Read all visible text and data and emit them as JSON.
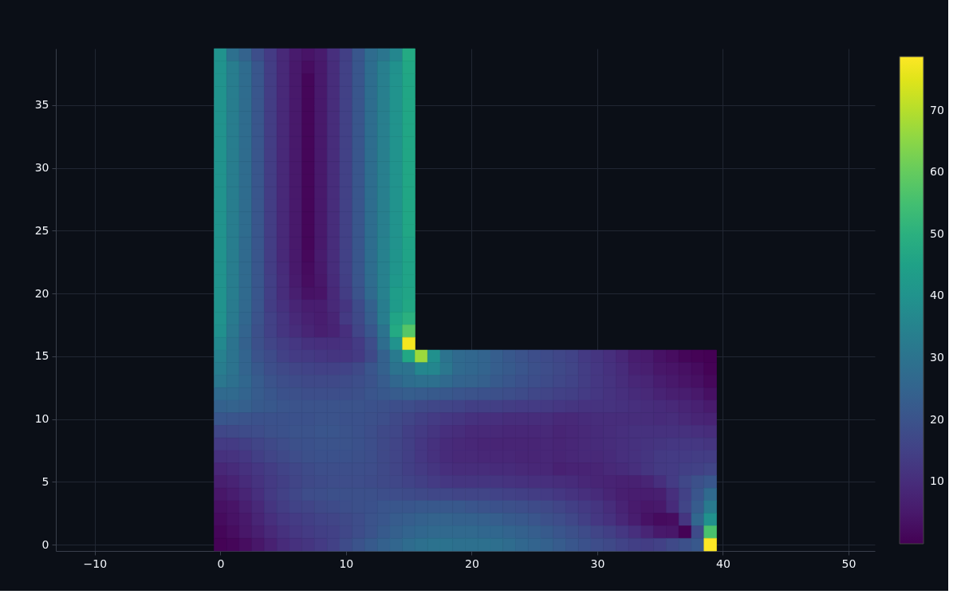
{
  "chart_data": {
    "type": "heatmap",
    "x": [
      0,
      1,
      2,
      3,
      4,
      5,
      6,
      7,
      8,
      9,
      10,
      11,
      12,
      13,
      14,
      15,
      16,
      17,
      18,
      19,
      20,
      21,
      22,
      23,
      24,
      25,
      26,
      27,
      28,
      29,
      30,
      31,
      32,
      33,
      34,
      35,
      36,
      37,
      38,
      39
    ],
    "y": [
      39,
      38,
      37,
      36,
      35,
      34,
      33,
      32,
      31,
      30,
      29,
      28,
      27,
      26,
      25,
      24,
      23,
      22,
      21,
      20,
      19,
      18,
      17,
      16,
      15,
      14,
      13,
      12,
      11,
      10,
      9,
      8,
      7,
      6,
      5,
      4,
      3,
      2,
      1,
      0
    ],
    "xlim": [
      -13.1,
      52.1
    ],
    "ylim": [
      -0.5,
      39.5
    ],
    "xticks": [
      -10,
      0,
      10,
      20,
      30,
      40,
      50
    ],
    "yticks": [
      0,
      5,
      10,
      15,
      20,
      25,
      30,
      35
    ],
    "clim": [
      0,
      78.7
    ],
    "cticks": [
      10,
      20,
      30,
      40,
      50,
      60,
      70
    ],
    "grid": true,
    "cells": [
      [
        40,
        29,
        24.5,
        18.5,
        13.5,
        9,
        5.5,
        4,
        5.5,
        10.5,
        14.5,
        21,
        27.5,
        30.5,
        36,
        48,
        null,
        null,
        null,
        null,
        null,
        null,
        null,
        null,
        null,
        null,
        null,
        null,
        null,
        null,
        null,
        null,
        null,
        null,
        null,
        null,
        null,
        null,
        null,
        null
      ],
      [
        40,
        33,
        27.5,
        21,
        14,
        9,
        5,
        2.5,
        5,
        10,
        15,
        21,
        28,
        33.5,
        39.5,
        47,
        null,
        null,
        null,
        null,
        null,
        null,
        null,
        null,
        null,
        null,
        null,
        null,
        null,
        null,
        null,
        null,
        null,
        null,
        null,
        null,
        null,
        null,
        null,
        null
      ],
      [
        40,
        33,
        27.5,
        21,
        14,
        9,
        5,
        1,
        5,
        10,
        15,
        21,
        28,
        33.5,
        40,
        46.5,
        null,
        null,
        null,
        null,
        null,
        null,
        null,
        null,
        null,
        null,
        null,
        null,
        null,
        null,
        null,
        null,
        null,
        null,
        null,
        null,
        null,
        null,
        null,
        null
      ],
      [
        40,
        33,
        27.5,
        21,
        14,
        9,
        5,
        1,
        5,
        10,
        15,
        21,
        28,
        33.5,
        40,
        46.5,
        null,
        null,
        null,
        null,
        null,
        null,
        null,
        null,
        null,
        null,
        null,
        null,
        null,
        null,
        null,
        null,
        null,
        null,
        null,
        null,
        null,
        null,
        null,
        null
      ],
      [
        40,
        33,
        27.5,
        21,
        14,
        9,
        5,
        1,
        5,
        10,
        15,
        21,
        28,
        33.5,
        40,
        46.5,
        null,
        null,
        null,
        null,
        null,
        null,
        null,
        null,
        null,
        null,
        null,
        null,
        null,
        null,
        null,
        null,
        null,
        null,
        null,
        null,
        null,
        null,
        null,
        null
      ],
      [
        40,
        33,
        27.5,
        21,
        14,
        9,
        5,
        1,
        5,
        10,
        15,
        21,
        28,
        33.5,
        40,
        46.5,
        null,
        null,
        null,
        null,
        null,
        null,
        null,
        null,
        null,
        null,
        null,
        null,
        null,
        null,
        null,
        null,
        null,
        null,
        null,
        null,
        null,
        null,
        null,
        null
      ],
      [
        40,
        33,
        27.5,
        21,
        14,
        9,
        5,
        1,
        5,
        10,
        15,
        21,
        28,
        33.5,
        40,
        46.5,
        null,
        null,
        null,
        null,
        null,
        null,
        null,
        null,
        null,
        null,
        null,
        null,
        null,
        null,
        null,
        null,
        null,
        null,
        null,
        null,
        null,
        null,
        null,
        null
      ],
      [
        40,
        33,
        27.5,
        21,
        14,
        9,
        5,
        1,
        5,
        10,
        15,
        21,
        28,
        33.5,
        40,
        46.5,
        null,
        null,
        null,
        null,
        null,
        null,
        null,
        null,
        null,
        null,
        null,
        null,
        null,
        null,
        null,
        null,
        null,
        null,
        null,
        null,
        null,
        null,
        null,
        null
      ],
      [
        40,
        33,
        27.5,
        21,
        14,
        9,
        5,
        1,
        5,
        10,
        15,
        21,
        28,
        33.5,
        40,
        46.5,
        null,
        null,
        null,
        null,
        null,
        null,
        null,
        null,
        null,
        null,
        null,
        null,
        null,
        null,
        null,
        null,
        null,
        null,
        null,
        null,
        null,
        null,
        null,
        null
      ],
      [
        40,
        33,
        27.5,
        21,
        14,
        9,
        5,
        1,
        5,
        10,
        15,
        21,
        28,
        33.5,
        40,
        46.5,
        null,
        null,
        null,
        null,
        null,
        null,
        null,
        null,
        null,
        null,
        null,
        null,
        null,
        null,
        null,
        null,
        null,
        null,
        null,
        null,
        null,
        null,
        null,
        null
      ],
      [
        40,
        33,
        27.5,
        21,
        14,
        9,
        5,
        1,
        5,
        10,
        15,
        21,
        28,
        33.5,
        40,
        46.5,
        null,
        null,
        null,
        null,
        null,
        null,
        null,
        null,
        null,
        null,
        null,
        null,
        null,
        null,
        null,
        null,
        null,
        null,
        null,
        null,
        null,
        null,
        null,
        null
      ],
      [
        40,
        33,
        27.5,
        21,
        14,
        9,
        5,
        1,
        5,
        10,
        15,
        21,
        28,
        33.5,
        40,
        46.5,
        null,
        null,
        null,
        null,
        null,
        null,
        null,
        null,
        null,
        null,
        null,
        null,
        null,
        null,
        null,
        null,
        null,
        null,
        null,
        null,
        null,
        null,
        null,
        null
      ],
      [
        40,
        33,
        27.5,
        21,
        14,
        9,
        5,
        1,
        5,
        10,
        15,
        21,
        28,
        33.5,
        40,
        46.5,
        null,
        null,
        null,
        null,
        null,
        null,
        null,
        null,
        null,
        null,
        null,
        null,
        null,
        null,
        null,
        null,
        null,
        null,
        null,
        null,
        null,
        null,
        null,
        null
      ],
      [
        40,
        33,
        27.5,
        21,
        14,
        9,
        5,
        1,
        5,
        10,
        15,
        21,
        28,
        33.5,
        40,
        46.5,
        null,
        null,
        null,
        null,
        null,
        null,
        null,
        null,
        null,
        null,
        null,
        null,
        null,
        null,
        null,
        null,
        null,
        null,
        null,
        null,
        null,
        null,
        null,
        null
      ],
      [
        40,
        33,
        27.5,
        21,
        14,
        9,
        5,
        1,
        5,
        10,
        15,
        21,
        28,
        33.5,
        40,
        46.5,
        null,
        null,
        null,
        null,
        null,
        null,
        null,
        null,
        null,
        null,
        null,
        null,
        null,
        null,
        null,
        null,
        null,
        null,
        null,
        null,
        null,
        null,
        null,
        null
      ],
      [
        40,
        33,
        27,
        21,
        14,
        9,
        5,
        1,
        5,
        10,
        15,
        21,
        28,
        34,
        40,
        45.5,
        null,
        null,
        null,
        null,
        null,
        null,
        null,
        null,
        null,
        null,
        null,
        null,
        null,
        null,
        null,
        null,
        null,
        null,
        null,
        null,
        null,
        null,
        null,
        null
      ],
      [
        40,
        33,
        27,
        21,
        14,
        9,
        5,
        1.5,
        5.5,
        10,
        15,
        21,
        28,
        34,
        40.5,
        45.5,
        null,
        null,
        null,
        null,
        null,
        null,
        null,
        null,
        null,
        null,
        null,
        null,
        null,
        null,
        null,
        null,
        null,
        null,
        null,
        null,
        null,
        null,
        null,
        null
      ],
      [
        40,
        33,
        27,
        21,
        14,
        9.5,
        5,
        2,
        5,
        10,
        15,
        21,
        28,
        34,
        41,
        45.5,
        null,
        null,
        null,
        null,
        null,
        null,
        null,
        null,
        null,
        null,
        null,
        null,
        null,
        null,
        null,
        null,
        null,
        null,
        null,
        null,
        null,
        null,
        null,
        null
      ],
      [
        40,
        33,
        27,
        21,
        14.5,
        10,
        5.5,
        2.5,
        4.5,
        9.5,
        14.5,
        20.5,
        27.5,
        34,
        42,
        45.5,
        null,
        null,
        null,
        null,
        null,
        null,
        null,
        null,
        null,
        null,
        null,
        null,
        null,
        null,
        null,
        null,
        null,
        null,
        null,
        null,
        null,
        null,
        null,
        null
      ],
      [
        40,
        33,
        27,
        21,
        14.5,
        10,
        6.5,
        3.5,
        4,
        9,
        14,
        20,
        27,
        34,
        43.5,
        46,
        null,
        null,
        null,
        null,
        null,
        null,
        null,
        null,
        null,
        null,
        null,
        null,
        null,
        null,
        null,
        null,
        null,
        null,
        null,
        null,
        null,
        null,
        null,
        null
      ],
      [
        40,
        32.5,
        26.5,
        20.5,
        14,
        11,
        8,
        6,
        6,
        9,
        12,
        17.5,
        24,
        33,
        43,
        47,
        null,
        null,
        null,
        null,
        null,
        null,
        null,
        null,
        null,
        null,
        null,
        null,
        null,
        null,
        null,
        null,
        null,
        null,
        null,
        null,
        null,
        null,
        null,
        null
      ],
      [
        40,
        32,
        26,
        20,
        15,
        12,
        9,
        7,
        6,
        8,
        13,
        17,
        23,
        33,
        46,
        50,
        null,
        null,
        null,
        null,
        null,
        null,
        null,
        null,
        null,
        null,
        null,
        null,
        null,
        null,
        null,
        null,
        null,
        null,
        null,
        null,
        null,
        null,
        null,
        null
      ],
      [
        39,
        31,
        25,
        19,
        15,
        12,
        10,
        8,
        6.5,
        7.5,
        10.5,
        16,
        21,
        30,
        48,
        58,
        null,
        null,
        null,
        null,
        null,
        null,
        null,
        null,
        null,
        null,
        null,
        null,
        null,
        null,
        null,
        null,
        null,
        null,
        null,
        null,
        null,
        null,
        null,
        null
      ],
      [
        37,
        30,
        24,
        19,
        16,
        14,
        12.5,
        11,
        10.5,
        10.5,
        11,
        13.5,
        18,
        28,
        40,
        77.5,
        null,
        null,
        null,
        null,
        null,
        null,
        null,
        null,
        null,
        null,
        null,
        null,
        null,
        null,
        null,
        null,
        null,
        null,
        null,
        null,
        null,
        null,
        null,
        null
      ],
      [
        34,
        30,
        25,
        20,
        17.5,
        15,
        13.5,
        13,
        12.5,
        12,
        12,
        13,
        17,
        24,
        32,
        47,
        67,
        39,
        30,
        27,
        26,
        25,
        23,
        21.5,
        20,
        18.5,
        17.5,
        16.5,
        15.5,
        13,
        12,
        10.5,
        8.5,
        6,
        5.5,
        3.5,
        2.5,
        1,
        0.5,
        0
      ],
      [
        33,
        30,
        25,
        21.5,
        18.5,
        17,
        16,
        15.5,
        15,
        15,
        15.5,
        17,
        20.5,
        24,
        30,
        30,
        36,
        36,
        31,
        27,
        26,
        25,
        23,
        22,
        20.5,
        19,
        18,
        17,
        16,
        14,
        12.5,
        11,
        9.5,
        7,
        6.5,
        4.5,
        4,
        3,
        2,
        0.5
      ],
      [
        31,
        29,
        26,
        22.5,
        20,
        18.5,
        17.5,
        17,
        17,
        17,
        17.5,
        18.5,
        20,
        22.5,
        26,
        28,
        29,
        29,
        27,
        25,
        24.5,
        23.5,
        22,
        21,
        19.5,
        18.5,
        17.5,
        16.5,
        15.5,
        14,
        12.5,
        11.5,
        10,
        8.5,
        8,
        6,
        5,
        4,
        3,
        1.5
      ],
      [
        27,
        27,
        25,
        22.5,
        21,
        19.5,
        19,
        18.5,
        18.5,
        18.5,
        18.5,
        19,
        20.5,
        21.5,
        22.5,
        23,
        22.5,
        22,
        21.5,
        20.5,
        20,
        19.5,
        19,
        18.5,
        17.5,
        16.5,
        16,
        15,
        14.5,
        13.5,
        12.5,
        11.5,
        10.5,
        9.5,
        9,
        7.5,
        6.5,
        6,
        5,
        3
      ],
      [
        24,
        24.5,
        23.5,
        22,
        21.5,
        20.5,
        20,
        20,
        20,
        20,
        20,
        20,
        19.5,
        19,
        18.5,
        18,
        17,
        16.5,
        16,
        15.5,
        14.5,
        14.5,
        14.5,
        14,
        13.5,
        13.5,
        13,
        12.5,
        12,
        11.5,
        11.5,
        11.5,
        11,
        10.5,
        10,
        9.5,
        9,
        8,
        7,
        5.5
      ],
      [
        21,
        20.5,
        20,
        19.5,
        19.5,
        19.5,
        19.5,
        19.5,
        20,
        20,
        19.5,
        19.5,
        19,
        18.5,
        17,
        16,
        14.5,
        13.5,
        12.5,
        12,
        11,
        10.5,
        10.5,
        10,
        10,
        10,
        10,
        9,
        9,
        9.5,
        10,
        10,
        10,
        10,
        10,
        9.5,
        10,
        9,
        8,
        7.5
      ],
      [
        16.5,
        17,
        17.5,
        18,
        19,
        19.5,
        20,
        20,
        20.5,
        20.5,
        20,
        19.5,
        18.5,
        17,
        16.5,
        14.5,
        13,
        12,
        10.5,
        10,
        9,
        9,
        9,
        8.5,
        8.5,
        8.5,
        9,
        8,
        8.5,
        9,
        9.5,
        10,
        10.5,
        11,
        11,
        11,
        11,
        11,
        10.5,
        10
      ],
      [
        13.5,
        13.5,
        14.5,
        16,
        17,
        18,
        19,
        19.5,
        20,
        20,
        20,
        19.5,
        18.5,
        17,
        16,
        14.5,
        12.5,
        11,
        9.5,
        9,
        8.5,
        8,
        8,
        8,
        8,
        8,
        8.5,
        8,
        8.5,
        9,
        9.5,
        10,
        10.5,
        11,
        11.5,
        12,
        12.5,
        12.5,
        12.5,
        12
      ],
      [
        11,
        11.5,
        12.5,
        14.5,
        16,
        17,
        18,
        19,
        19.5,
        19.5,
        19.5,
        19,
        18.5,
        17,
        16,
        14.5,
        12.5,
        11,
        9.5,
        9,
        9,
        8.5,
        8.5,
        8.5,
        8,
        8,
        8.5,
        8,
        8.5,
        9,
        9,
        9.5,
        10.5,
        11,
        12,
        13,
        13.5,
        13.5,
        14,
        14
      ],
      [
        8.5,
        9.5,
        11,
        12.5,
        14,
        15.5,
        16.5,
        17.5,
        18.5,
        18.5,
        18.5,
        18.5,
        18,
        17,
        16,
        14.5,
        13,
        12,
        10.5,
        10,
        10,
        10,
        9.5,
        9.5,
        9,
        8.5,
        8.5,
        7,
        7.5,
        7.5,
        8,
        9,
        9.5,
        10.5,
        12,
        13,
        13.5,
        14.5,
        15,
        16
      ],
      [
        6.5,
        7.5,
        9.5,
        11.5,
        13,
        14.5,
        16,
        17,
        17.5,
        18,
        18,
        18,
        17.5,
        17,
        16.5,
        15.5,
        14.5,
        13.5,
        12.5,
        12,
        12,
        12,
        12,
        11.5,
        11,
        10.5,
        10.5,
        10,
        9.5,
        8.5,
        8,
        7.5,
        7,
        7,
        8,
        10.5,
        13.5,
        16.5,
        19,
        21
      ],
      [
        4.5,
        6,
        8,
        10.5,
        13,
        15,
        16.5,
        18,
        18.5,
        19,
        19,
        19,
        19,
        18.5,
        18,
        17.5,
        17,
        16.5,
        16.5,
        16,
        16,
        16,
        15.5,
        15,
        14.5,
        14,
        13.5,
        12.5,
        11.5,
        10.5,
        9.5,
        8,
        6.5,
        6,
        6,
        6.5,
        10.5,
        15,
        20.5,
        27
      ],
      [
        3,
        4,
        6.5,
        9,
        12,
        14,
        15.5,
        16,
        17,
        17.5,
        18.5,
        19,
        19.5,
        20.5,
        21,
        21,
        21.5,
        21.5,
        21.5,
        21.5,
        20.5,
        20,
        19.5,
        19,
        18.5,
        17.5,
        17,
        16,
        14.5,
        13,
        12,
        10,
        7.5,
        5.5,
        4.5,
        5,
        9.5,
        16,
        22.5,
        32
      ],
      [
        2,
        3.5,
        5,
        8,
        10.5,
        12.5,
        13.5,
        14.5,
        15.5,
        16,
        17,
        18,
        20,
        21,
        22.5,
        23,
        24,
        24.5,
        24.5,
        24,
        24,
        23.5,
        23,
        22,
        21.5,
        20.5,
        19,
        18,
        16.5,
        14.5,
        12.5,
        11,
        8.5,
        6,
        3.5,
        2,
        2.5,
        12,
        26,
        39.5
      ],
      [
        1,
        2.5,
        4.5,
        6.5,
        9,
        11,
        12.5,
        13.5,
        14.5,
        15,
        16.5,
        18,
        20,
        22,
        23.5,
        25,
        26,
        26.5,
        26.5,
        26.5,
        26.5,
        26,
        26,
        25,
        24,
        23,
        22,
        20.5,
        19,
        17.5,
        16,
        14.5,
        12.5,
        10.5,
        8,
        5,
        4.5,
        0.5,
        17.5,
        56
      ],
      [
        0.5,
        1,
        2.5,
        4.5,
        7,
        9.5,
        11,
        12,
        13.5,
        15,
        17.5,
        20,
        22,
        24,
        25.5,
        27.5,
        29,
        29.5,
        29.5,
        29,
        29,
        29,
        28.5,
        27.5,
        26,
        25,
        24,
        22.5,
        21,
        19.5,
        18,
        17,
        15.5,
        14.5,
        14,
        15,
        17,
        19,
        21.5,
        78.7
      ]
    ]
  }
}
